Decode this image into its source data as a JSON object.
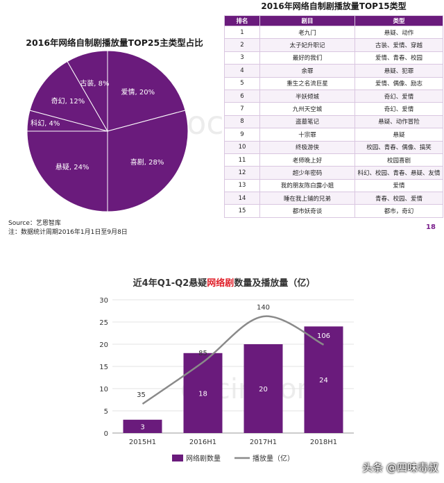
{
  "pie": {
    "title": "2016年网络自制剧播放量TOP25主类型占比",
    "source": "Source：艺恩智库",
    "note": "注：数据统计周期2016年1月1日至9月8日"
  },
  "table": {
    "title": "2016年网络自制剧播放量TOP15类型",
    "headers": [
      "排名",
      "剧目",
      "类型"
    ],
    "rows": [
      [
        "1",
        "老九门",
        "悬疑、动作"
      ],
      [
        "2",
        "太子妃升职记",
        "古装、爱情、穿越"
      ],
      [
        "3",
        "最好的我们",
        "爱情、青春、校园"
      ],
      [
        "4",
        "余罪",
        "悬疑、犯罪"
      ],
      [
        "5",
        "重生之名流巨星",
        "爱情、偶像、励志"
      ],
      [
        "6",
        "半妖倾城",
        "奇幻、爱情"
      ],
      [
        "7",
        "九州天空城",
        "奇幻、爱情"
      ],
      [
        "8",
        "盗墓笔记",
        "悬疑、动作冒险"
      ],
      [
        "9",
        "十宗罪",
        "悬疑"
      ],
      [
        "10",
        "终极游侠",
        "校园、青春、偶像、搞笑"
      ],
      [
        "11",
        "老师晚上好",
        "校园喜剧"
      ],
      [
        "12",
        "超少年密码",
        "科幻、校园、青春、悬疑、友情"
      ],
      [
        "13",
        "我的朋友陈白露小姐",
        "爱情"
      ],
      [
        "14",
        "睡在我上铺的兄弟",
        "青春、校园、爱情"
      ],
      [
        "15",
        "都市妖奇谈",
        "都市，奇幻"
      ]
    ],
    "page_number": "18"
  },
  "watermark": {
    "top": "docin.com",
    "bottom": "docin.com"
  },
  "credit": "头条 @四味毒叔",
  "colors": {
    "purple": "#6a1b7c",
    "line": "#8a8a8a"
  },
  "chart_data": [
    {
      "type": "pie",
      "title": "2016年网络自制剧播放量TOP25主类型占比",
      "slices": [
        {
          "label": "爱情",
          "value": 20,
          "text": "爱情, 20%"
        },
        {
          "label": "喜剧",
          "value": 28,
          "text": "喜剧, 28%"
        },
        {
          "label": "悬疑",
          "value": 24,
          "text": "悬疑, 24%"
        },
        {
          "label": "科幻",
          "value": 4,
          "text": "科幻, 4%"
        },
        {
          "label": "奇幻",
          "value": 12,
          "text": "奇幻, 12%"
        },
        {
          "label": "古装",
          "value": 8,
          "text": "古装, 8%"
        }
      ]
    },
    {
      "type": "bar",
      "title_parts": [
        "近4年Q1-Q2悬疑",
        "网络剧",
        "数量及播放量（亿）"
      ],
      "categories": [
        "2015H1",
        "2016H1",
        "2017H1",
        "2018H1"
      ],
      "series": [
        {
          "name": "网络剧数量",
          "type": "bar",
          "values": [
            3,
            18,
            20,
            24
          ]
        },
        {
          "name": "播放量（亿）",
          "type": "line",
          "values": [
            35,
            85,
            140,
            106
          ]
        }
      ],
      "ylim": [
        0,
        30
      ],
      "yticks": [
        0,
        5,
        10,
        15,
        20,
        25,
        30
      ],
      "line_scale_max": 160
    }
  ]
}
